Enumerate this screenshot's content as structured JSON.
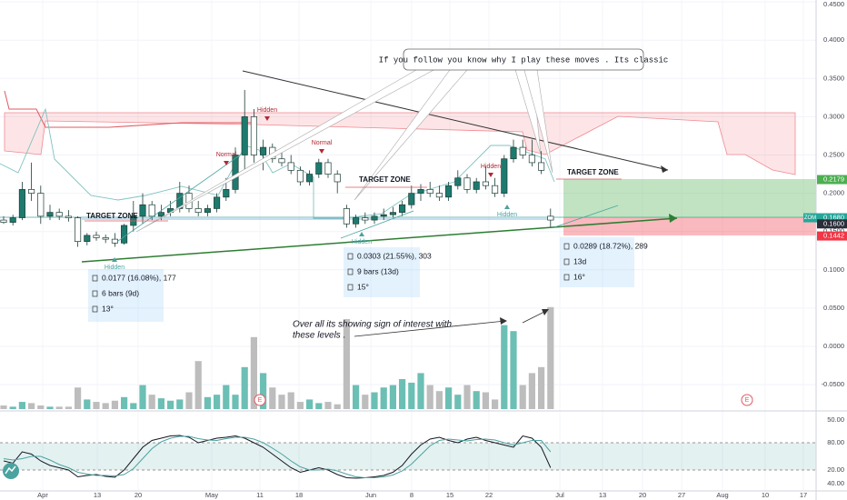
{
  "symbol": "ZOM",
  "price_axis": {
    "ticks": [
      {
        "value": 0.45,
        "label": "0.4500"
      },
      {
        "value": 0.4,
        "label": "0.4000"
      },
      {
        "value": 0.35,
        "label": "0.3500"
      },
      {
        "value": 0.3,
        "label": "0.3000"
      },
      {
        "value": 0.25,
        "label": "0.2500"
      },
      {
        "value": 0.2,
        "label": "0.2000"
      },
      {
        "value": 0.15,
        "label": "0.1500"
      },
      {
        "value": 0.1,
        "label": "0.1000"
      },
      {
        "value": 0.05,
        "label": "0.0500"
      },
      {
        "value": 0,
        "label": "0.0000"
      },
      {
        "value": -0.05,
        "label": "-0.0500"
      }
    ]
  },
  "time_axis": [
    "Apr",
    "13",
    "20",
    "May",
    "11",
    "18",
    "Jun",
    "8",
    "15",
    "22",
    "Jul",
    "13",
    "20",
    "27",
    "Aug",
    "10",
    "17"
  ],
  "oscillator_axis": [
    "50.00",
    "80.00",
    "20.00",
    "40.00"
  ],
  "price_tags": [
    {
      "value": 0.2179,
      "label": "0.2179"
    },
    {
      "value": 0.168,
      "label": "0.1680"
    },
    {
      "value": 0.16,
      "label": "0.1600"
    },
    {
      "value": 0.1442,
      "label": "0.1442"
    }
  ],
  "candles": {
    "open": [
      0.165,
      0.162,
      0.168,
      0.205,
      0.2,
      0.17,
      0.175,
      0.17,
      0.168,
      0.137,
      0.145,
      0.142,
      0.14,
      0.135,
      0.158,
      0.17,
      0.185,
      0.17,
      0.175,
      0.18,
      0.2,
      0.18,
      0.175,
      0.18,
      0.195,
      0.205,
      0.25,
      0.3,
      0.25,
      0.26,
      0.245,
      0.24,
      0.23,
      0.215,
      0.225,
      0.24,
      0.225,
      0.18,
      0.16,
      0.168,
      0.165,
      0.17,
      0.172,
      0.175,
      0.185,
      0.2,
      0.205,
      0.2,
      0.195,
      0.21,
      0.22,
      0.205,
      0.215,
      0.21,
      0.2,
      0.245,
      0.26,
      0.25,
      0.24,
      0.17
    ],
    "high": [
      0.17,
      0.172,
      0.215,
      0.24,
      0.21,
      0.185,
      0.18,
      0.178,
      0.17,
      0.148,
      0.15,
      0.146,
      0.148,
      0.16,
      0.19,
      0.2,
      0.19,
      0.185,
      0.19,
      0.215,
      0.21,
      0.19,
      0.185,
      0.2,
      0.22,
      0.26,
      0.335,
      0.31,
      0.27,
      0.265,
      0.255,
      0.25,
      0.235,
      0.23,
      0.245,
      0.245,
      0.23,
      0.185,
      0.172,
      0.175,
      0.175,
      0.18,
      0.182,
      0.19,
      0.21,
      0.212,
      0.215,
      0.21,
      0.215,
      0.23,
      0.225,
      0.22,
      0.235,
      0.22,
      0.25,
      0.27,
      0.27,
      0.27,
      0.255,
      0.18
    ],
    "low": [
      0.16,
      0.158,
      0.165,
      0.19,
      0.16,
      0.165,
      0.165,
      0.163,
      0.13,
      0.132,
      0.138,
      0.135,
      0.13,
      0.133,
      0.15,
      0.16,
      0.165,
      0.165,
      0.17,
      0.175,
      0.175,
      0.17,
      0.17,
      0.175,
      0.19,
      0.2,
      0.23,
      0.24,
      0.23,
      0.24,
      0.235,
      0.225,
      0.21,
      0.21,
      0.22,
      0.22,
      0.2,
      0.155,
      0.155,
      0.16,
      0.16,
      0.165,
      0.168,
      0.17,
      0.18,
      0.19,
      0.195,
      0.19,
      0.19,
      0.205,
      0.2,
      0.2,
      0.205,
      0.195,
      0.195,
      0.24,
      0.245,
      0.235,
      0.225,
      0.155
    ],
    "close": [
      0.162,
      0.168,
      0.205,
      0.2,
      0.17,
      0.175,
      0.17,
      0.168,
      0.137,
      0.145,
      0.142,
      0.14,
      0.135,
      0.158,
      0.17,
      0.185,
      0.17,
      0.175,
      0.18,
      0.2,
      0.18,
      0.175,
      0.18,
      0.195,
      0.205,
      0.25,
      0.3,
      0.25,
      0.26,
      0.245,
      0.24,
      0.23,
      0.215,
      0.225,
      0.24,
      0.225,
      0.215,
      0.16,
      0.168,
      0.165,
      0.17,
      0.172,
      0.175,
      0.185,
      0.2,
      0.205,
      0.2,
      0.195,
      0.21,
      0.22,
      0.205,
      0.215,
      0.21,
      0.2,
      0.245,
      0.26,
      0.25,
      0.24,
      0.23,
      0.165
    ]
  },
  "volume": [
    3,
    2,
    6,
    5,
    3,
    2,
    2,
    2,
    18,
    8,
    6,
    5,
    7,
    10,
    5,
    20,
    12,
    9,
    7,
    8,
    14,
    40,
    10,
    12,
    20,
    12,
    35,
    60,
    30,
    18,
    12,
    14,
    6,
    8,
    5,
    6,
    4,
    75,
    20,
    12,
    14,
    18,
    20,
    25,
    22,
    30,
    20,
    15,
    18,
    12,
    20,
    15,
    14,
    8,
    70,
    65,
    20,
    30,
    35,
    85
  ],
  "stochastic": {
    "k": [
      40,
      35,
      60,
      55,
      40,
      30,
      25,
      20,
      5,
      8,
      10,
      6,
      4,
      20,
      45,
      70,
      85,
      90,
      95,
      96,
      92,
      80,
      85,
      90,
      92,
      95,
      90,
      80,
      70,
      55,
      40,
      25,
      15,
      20,
      25,
      20,
      10,
      3,
      2,
      3,
      5,
      8,
      15,
      30,
      55,
      75,
      88,
      92,
      85,
      80,
      88,
      92,
      85,
      80,
      75,
      70,
      95,
      90,
      70,
      25
    ],
    "d": [
      45,
      42,
      45,
      50,
      50,
      42,
      32,
      25,
      15,
      11,
      8,
      8,
      7,
      10,
      23,
      45,
      67,
      82,
      90,
      94,
      94,
      89,
      86,
      85,
      89,
      92,
      92,
      88,
      80,
      68,
      55,
      40,
      27,
      20,
      20,
      22,
      18,
      11,
      5,
      3,
      3,
      5,
      9,
      18,
      33,
      53,
      73,
      85,
      88,
      86,
      84,
      87,
      88,
      86,
      80,
      75,
      80,
      85,
      85,
      60
    ]
  },
  "annotations": {
    "callout": "If you follow you know why I play these moves . Its classic",
    "note": [
      "Over all its  showing sign of interest with",
      "these levels ."
    ],
    "target_zone": [
      "TARGET ZONE",
      "TARGET ZONE",
      "TARGET ZONE"
    ],
    "normal": [
      "Normal",
      "Normal"
    ],
    "hidden": [
      "Hidden",
      "Hidden",
      "Hidden",
      "Hidden",
      "Hidden"
    ],
    "measures": [
      {
        "change": "0.0177 (16.08%), 177",
        "bars": "6 bars (9d)",
        "angle": "13°"
      },
      {
        "change": "0.0303 (21.55%), 303",
        "bars": "9 bars (13d)",
        "angle": "15°"
      },
      {
        "change": "0.0289 (18.72%), 289",
        "bars": "13d",
        "angle": "16°"
      }
    ],
    "earnings": [
      "E",
      "E"
    ]
  }
}
